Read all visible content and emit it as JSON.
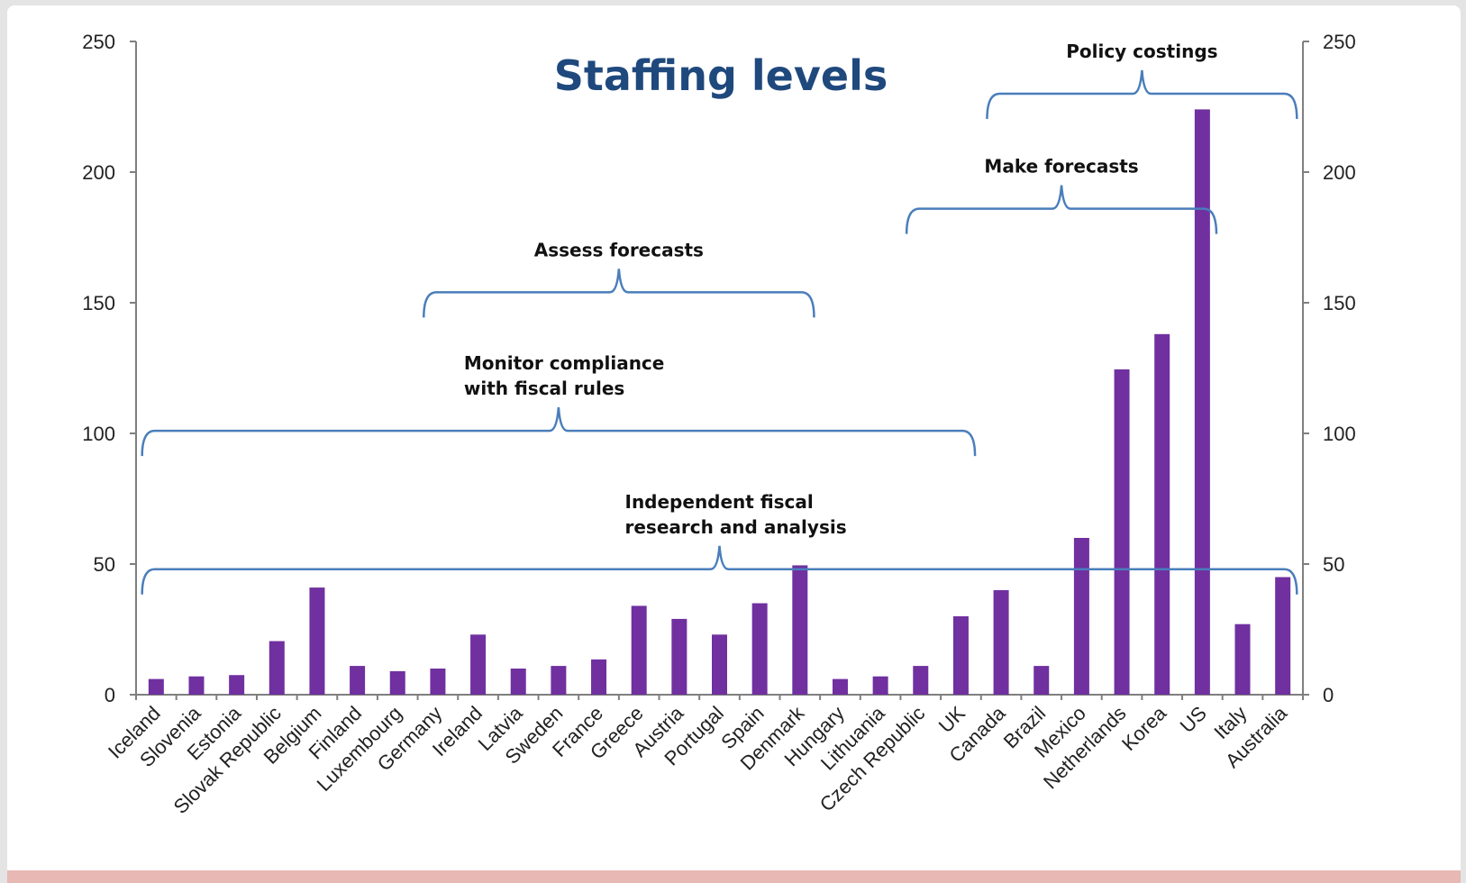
{
  "chart_data": {
    "type": "bar",
    "title": "Staffing levels",
    "xlabel": "",
    "ylabel": "",
    "ylim": [
      0,
      250
    ],
    "yticks": [
      "0",
      "50",
      "100",
      "150",
      "200",
      "250"
    ],
    "secondary_yticks": [
      "0",
      "50",
      "100",
      "150",
      "200",
      "250"
    ],
    "grid": false,
    "bar_color": "#7030a0",
    "categories": [
      "Iceland",
      "Slovenia",
      "Estonia",
      "Slovak Republic",
      "Belgium",
      "Finland",
      "Luxembourg",
      "Germany",
      "Ireland",
      "Latvia",
      "Sweden",
      "France",
      "Greece",
      "Austria",
      "Portugal",
      "Spain",
      "Denmark",
      "Hungary",
      "Lithuania",
      "Czech Republic",
      "UK",
      "Canada",
      "Brazil",
      "Mexico",
      "Netherlands",
      "Korea",
      "US",
      "Italy",
      "Australia"
    ],
    "values": [
      6,
      7,
      7.5,
      20.5,
      41,
      11,
      9,
      10,
      23,
      10,
      11,
      13.5,
      34,
      29,
      23,
      35,
      49.5,
      6,
      7,
      11,
      30,
      40,
      11,
      60,
      124.5,
      138,
      224,
      27,
      45
    ],
    "annotations": [
      {
        "label": [
          "Independent fiscal",
          "research and analysis"
        ],
        "from": "Iceland",
        "to": "Australia",
        "level": 48
      },
      {
        "label": [
          "Monitor compliance",
          "with fiscal rules"
        ],
        "from": "Iceland",
        "to": "UK",
        "level": 101
      },
      {
        "label": [
          "Assess forecasts"
        ],
        "from": "Germany",
        "to": "Denmark",
        "level": 154
      },
      {
        "label": [
          "Make forecasts"
        ],
        "from": "Czech Republic",
        "to": "US",
        "level": 186
      },
      {
        "label": [
          "Policy costings"
        ],
        "from": "Canada",
        "to": "Australia",
        "level": 230
      }
    ]
  }
}
